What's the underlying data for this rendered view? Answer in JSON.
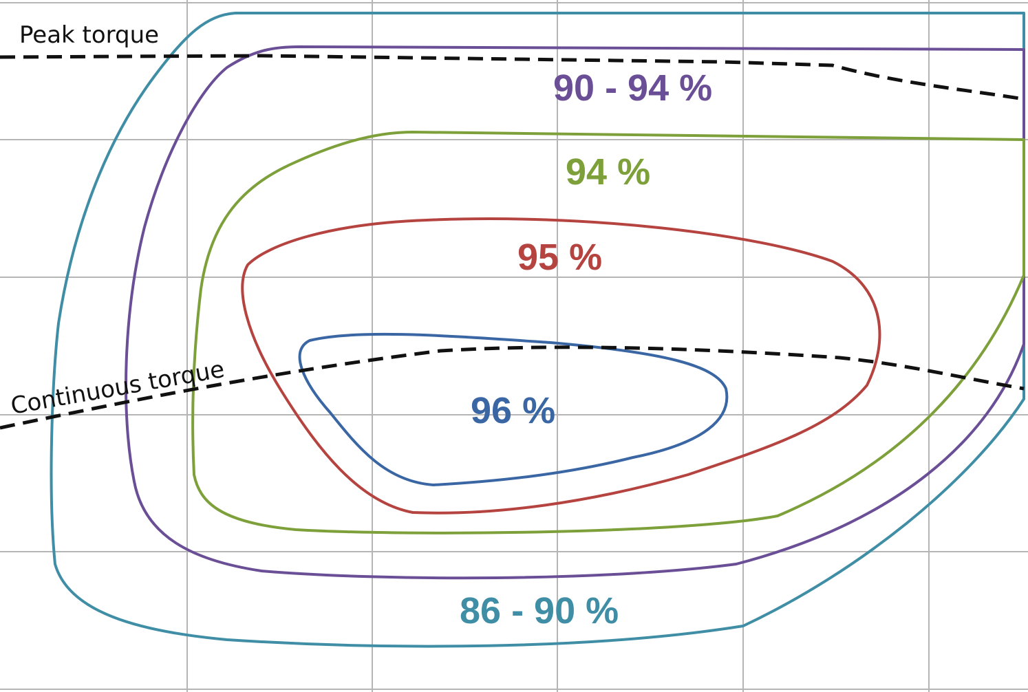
{
  "chart_data": {
    "type": "contour",
    "title": "",
    "xlabel": "",
    "ylabel": "",
    "grid": true,
    "efficiency_regions": [
      {
        "label": "86 - 90 %",
        "color": "#3f8ea6"
      },
      {
        "label": "90 - 94 %",
        "color": "#6a4f96"
      },
      {
        "label": "94 %",
        "color": "#7da03a"
      },
      {
        "label": "95 %",
        "color": "#b5433f"
      },
      {
        "label": "96 %",
        "color": "#3a67a4"
      }
    ],
    "torque_curves": [
      {
        "label": "Peak torque",
        "style": "dashed",
        "color": "#111111"
      },
      {
        "label": "Continuous torque",
        "style": "dashed",
        "color": "#111111"
      }
    ]
  }
}
